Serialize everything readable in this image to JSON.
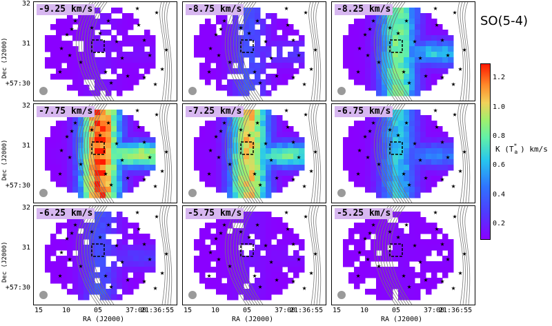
{
  "species": "SO(5-4)",
  "colorbar": {
    "label": "K (T",
    "label_sup": "*",
    "label_sub": "a",
    "label_tail": ") km/s",
    "ticks": [
      "1.2",
      "1.0",
      "0.8",
      "0.6",
      "0.4",
      "0.2"
    ],
    "tick_values": [
      1.2,
      1.0,
      0.8,
      0.6,
      0.4,
      0.2
    ],
    "range": [
      0.1,
      1.3
    ],
    "colormap": [
      "#8a00ff",
      "#4f3bff",
      "#2f74ff",
      "#27c6ee",
      "#62f0a8",
      "#9ff06e",
      "#f2d15a",
      "#ff8a2a",
      "#ff1a00"
    ]
  },
  "axes": {
    "ylabel": "Dec (J2000)",
    "xlabel": "RA (J2000)",
    "yticks": [
      "32",
      "31",
      "+57:30"
    ],
    "xticks": [
      "15",
      "10",
      "05",
      "37:00",
      "21:36:55"
    ]
  },
  "chart_data": {
    "type": "heatmap",
    "title": "SO(5-4)",
    "panels": [
      {
        "velocity": "-9.25 km/s",
        "peak_intensity": 0.15
      },
      {
        "velocity": "-8.75 km/s",
        "peak_intensity": 0.3
      },
      {
        "velocity": "-8.25 km/s",
        "peak_intensity": 0.75
      },
      {
        "velocity": "-7.75 km/s",
        "peak_intensity": 1.25
      },
      {
        "velocity": "-7.25 km/s",
        "peak_intensity": 1.0
      },
      {
        "velocity": "-6.75 km/s",
        "peak_intensity": 0.55
      },
      {
        "velocity": "-6.25 km/s",
        "peak_intensity": 0.3
      },
      {
        "velocity": "-5.75 km/s",
        "peak_intensity": 0.15
      },
      {
        "velocity": "-5.25 km/s",
        "peak_intensity": 0.12
      }
    ],
    "xlabel": "RA (J2000)",
    "ylabel": "Dec (J2000)",
    "colorbar_range": [
      0.1,
      1.3
    ]
  }
}
